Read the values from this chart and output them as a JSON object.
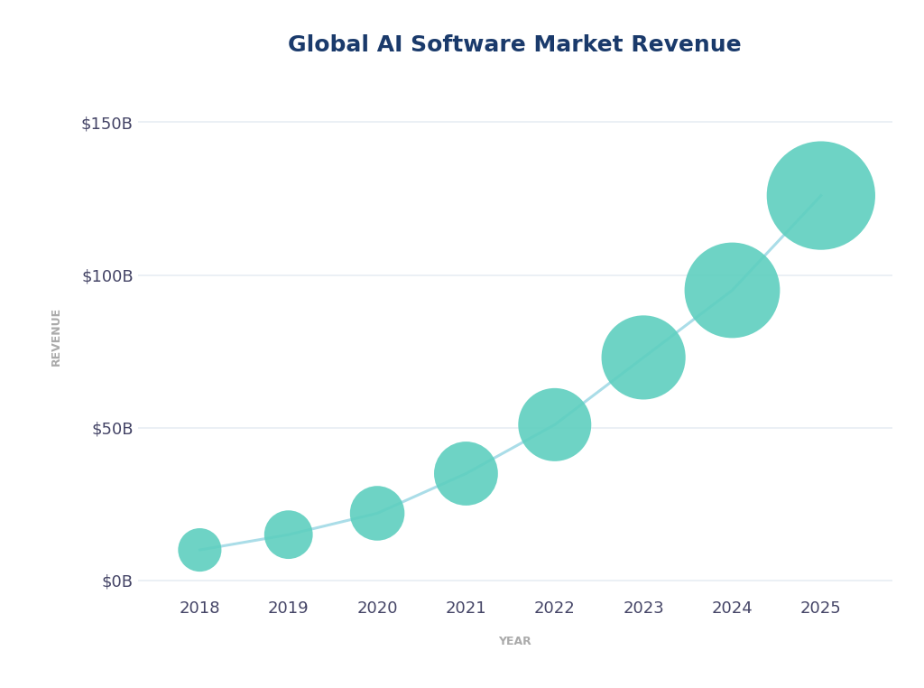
{
  "title": "Global AI Software Market Revenue",
  "xlabel": "YEAR",
  "ylabel": "REVENUE",
  "years": [
    2018,
    2019,
    2020,
    2021,
    2022,
    2023,
    2024,
    2025
  ],
  "values": [
    10,
    15,
    22,
    35,
    51,
    73,
    95,
    126
  ],
  "yticks": [
    0,
    50,
    100,
    150
  ],
  "ytick_labels": [
    "$0B",
    "$50B",
    "$100B",
    "$150B"
  ],
  "ylim": [
    -5,
    165
  ],
  "xlim": [
    2017.3,
    2025.8
  ],
  "line_color": "#aadde8",
  "dot_color": "#5ecfbf",
  "title_color": "#1a3a6b",
  "axis_label_color": "#aaaaaa",
  "tick_label_color": "#444466",
  "grid_color": "#e8eef4",
  "background_color": "#ffffff",
  "title_fontsize": 18,
  "axis_label_fontsize": 9,
  "tick_fontsize": 13,
  "dot_sizes": [
    1200,
    1500,
    1900,
    2600,
    3400,
    4500,
    5800,
    7500
  ]
}
